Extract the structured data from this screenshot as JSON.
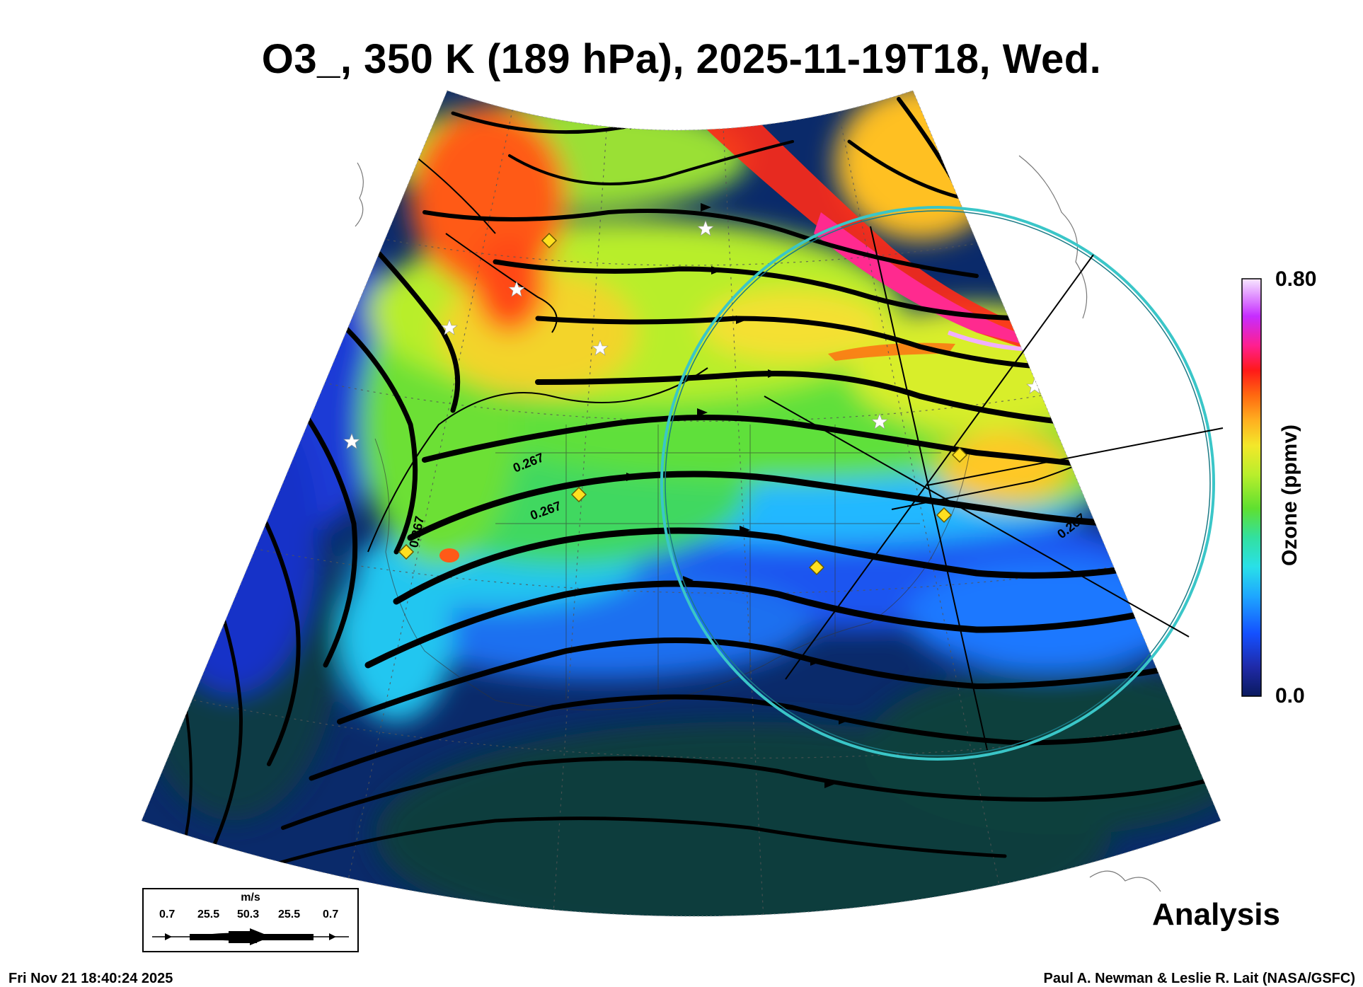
{
  "title": "O3_, 350 K (189 hPa), 2025-11-19T18, Wed.",
  "colorbar": {
    "label": "Ozone (ppmv)",
    "max": "0.80",
    "min": "0.0",
    "colors": [
      "#0a1a5e",
      "#1f2aa8",
      "#1450ff",
      "#1ea7ff",
      "#29e0e8",
      "#32e0a0",
      "#5fe030",
      "#b8ee2c",
      "#f3e82a",
      "#ffb020",
      "#ff6a10",
      "#ff1a18",
      "#ff1f8f",
      "#c62cff",
      "#f7e8ff"
    ]
  },
  "contour_labels": [
    "0.267",
    "0.267",
    "0.267",
    "0.267"
  ],
  "wind_legend": {
    "unit": "m/s",
    "ticks": [
      "0.7",
      "25.5",
      "50.3",
      "25.5",
      "0.7"
    ]
  },
  "analysis_label": "Analysis",
  "footer": {
    "timestamp": "Fri Nov 21 18:40:24 2025",
    "credit": "Paul A. Newman & Leslie R. Lait (NASA/GSFC)"
  }
}
